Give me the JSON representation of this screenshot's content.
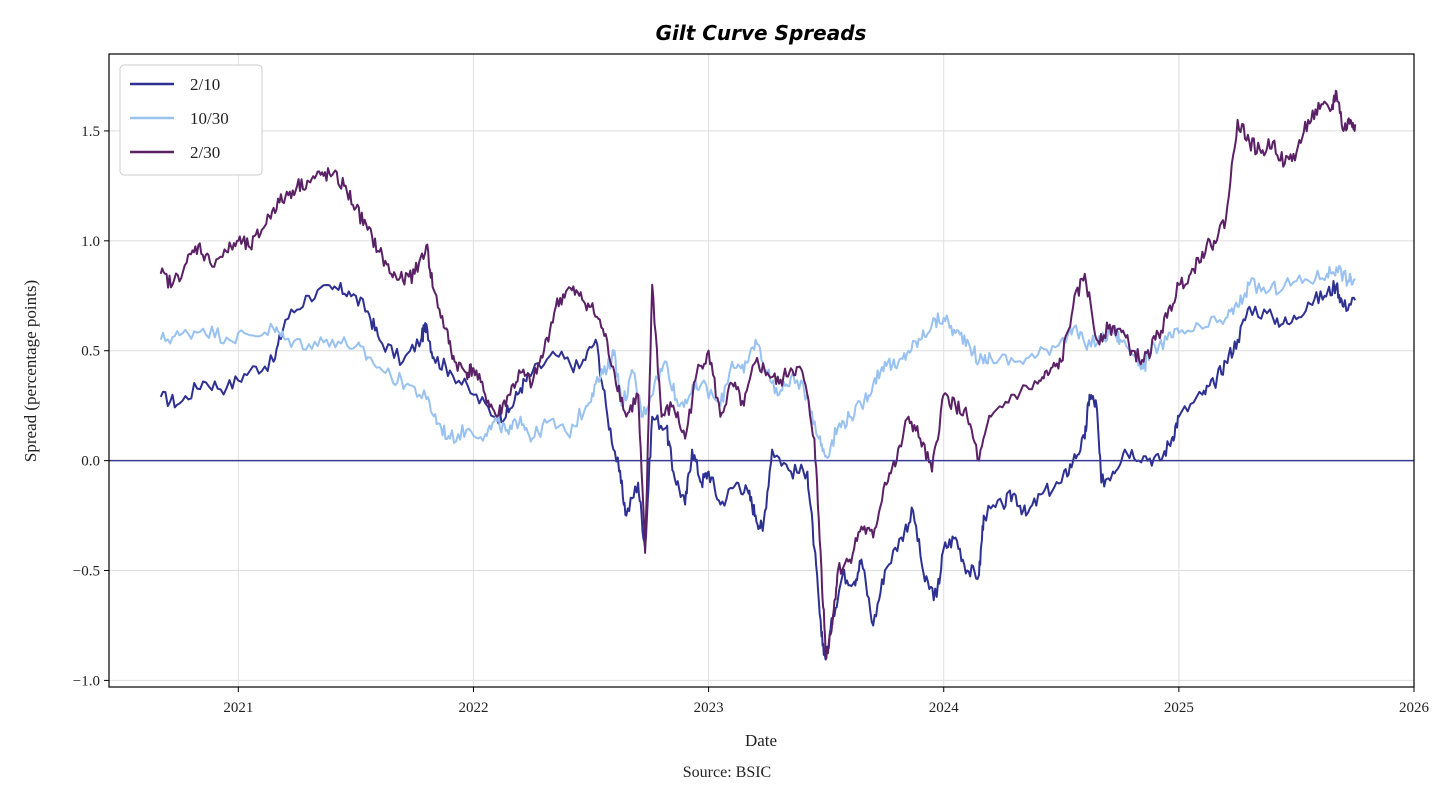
{
  "chart_data": {
    "type": "line",
    "title": "Gilt Curve Spreads",
    "xlabel": "Date",
    "ylabel": "Spread (percentage points)",
    "source": "Source: BSIC",
    "xlim": [
      2020.45,
      2026.0
    ],
    "ylim": [
      -1.03,
      1.85
    ],
    "x_ticks": [
      2021,
      2022,
      2023,
      2024,
      2025,
      2026
    ],
    "x_tick_labels": [
      "2021",
      "2022",
      "2023",
      "2024",
      "2025",
      "2026"
    ],
    "y_ticks": [
      -1.0,
      -0.5,
      0.0,
      0.5,
      1.0,
      1.5
    ],
    "y_tick_labels": [
      "−1.0",
      "−0.5",
      "0.0",
      "0.5",
      "1.0",
      "1.5"
    ],
    "grid": true,
    "legend_position": "top-left",
    "zero_line": {
      "value": 0.0,
      "color": "#3b3b96"
    },
    "series": [
      {
        "name": "2/10",
        "color": "#2e3192",
        "points": [
          [
            2020.67,
            0.29
          ],
          [
            2020.75,
            0.26
          ],
          [
            2020.85,
            0.36
          ],
          [
            2020.95,
            0.33
          ],
          [
            2021.05,
            0.41
          ],
          [
            2021.15,
            0.45
          ],
          [
            2021.2,
            0.64
          ],
          [
            2021.3,
            0.75
          ],
          [
            2021.4,
            0.78
          ],
          [
            2021.47,
            0.77
          ],
          [
            2021.55,
            0.68
          ],
          [
            2021.6,
            0.55
          ],
          [
            2021.7,
            0.45
          ],
          [
            2021.78,
            0.56
          ],
          [
            2021.8,
            0.62
          ],
          [
            2021.83,
            0.47
          ],
          [
            2021.9,
            0.41
          ],
          [
            2022.0,
            0.3
          ],
          [
            2022.1,
            0.2
          ],
          [
            2022.15,
            0.22
          ],
          [
            2022.2,
            0.33
          ],
          [
            2022.25,
            0.4
          ],
          [
            2022.35,
            0.48
          ],
          [
            2022.45,
            0.42
          ],
          [
            2022.52,
            0.55
          ],
          [
            2022.57,
            0.2
          ],
          [
            2022.62,
            -0.05
          ],
          [
            2022.65,
            -0.25
          ],
          [
            2022.7,
            -0.1
          ],
          [
            2022.73,
            -0.4
          ],
          [
            2022.76,
            0.2
          ],
          [
            2022.82,
            0.15
          ],
          [
            2022.85,
            -0.05
          ],
          [
            2022.9,
            -0.2
          ],
          [
            2022.93,
            0.05
          ],
          [
            2022.97,
            -0.1
          ],
          [
            2023.0,
            -0.05
          ],
          [
            2023.05,
            -0.2
          ],
          [
            2023.12,
            -0.1
          ],
          [
            2023.17,
            -0.15
          ],
          [
            2023.2,
            -0.25
          ],
          [
            2023.23,
            -0.32
          ],
          [
            2023.27,
            0.05
          ],
          [
            2023.35,
            -0.05
          ],
          [
            2023.42,
            -0.05
          ],
          [
            2023.45,
            -0.4
          ],
          [
            2023.48,
            -0.8
          ],
          [
            2023.5,
            -0.9
          ],
          [
            2023.53,
            -0.7
          ],
          [
            2023.57,
            -0.52
          ],
          [
            2023.62,
            -0.55
          ],
          [
            2023.65,
            -0.45
          ],
          [
            2023.7,
            -0.75
          ],
          [
            2023.75,
            -0.5
          ],
          [
            2023.82,
            -0.35
          ],
          [
            2023.87,
            -0.23
          ],
          [
            2023.92,
            -0.55
          ],
          [
            2023.97,
            -0.62
          ],
          [
            2024.0,
            -0.4
          ],
          [
            2024.05,
            -0.35
          ],
          [
            2024.1,
            -0.5
          ],
          [
            2024.15,
            -0.52
          ],
          [
            2024.17,
            -0.25
          ],
          [
            2024.25,
            -0.2
          ],
          [
            2024.3,
            -0.15
          ],
          [
            2024.35,
            -0.25
          ],
          [
            2024.42,
            -0.15
          ],
          [
            2024.5,
            -0.1
          ],
          [
            2024.55,
            0.0
          ],
          [
            2024.6,
            0.1
          ],
          [
            2024.62,
            0.3
          ],
          [
            2024.65,
            0.25
          ],
          [
            2024.67,
            -0.1
          ],
          [
            2024.72,
            -0.05
          ],
          [
            2024.77,
            0.05
          ],
          [
            2024.85,
            0.02
          ],
          [
            2024.92,
            0.0
          ],
          [
            2024.97,
            0.1
          ],
          [
            2025.0,
            0.2
          ],
          [
            2025.1,
            0.3
          ],
          [
            2025.15,
            0.35
          ],
          [
            2025.2,
            0.45
          ],
          [
            2025.25,
            0.55
          ],
          [
            2025.3,
            0.7
          ],
          [
            2025.4,
            0.65
          ],
          [
            2025.47,
            0.62
          ],
          [
            2025.55,
            0.72
          ],
          [
            2025.62,
            0.75
          ],
          [
            2025.67,
            0.8
          ],
          [
            2025.7,
            0.7
          ],
          [
            2025.75,
            0.73
          ]
        ]
      },
      {
        "name": "10/30",
        "color": "#99c2f0",
        "points": [
          [
            2020.67,
            0.55
          ],
          [
            2020.75,
            0.57
          ],
          [
            2020.85,
            0.6
          ],
          [
            2020.95,
            0.56
          ],
          [
            2021.05,
            0.57
          ],
          [
            2021.15,
            0.6
          ],
          [
            2021.2,
            0.55
          ],
          [
            2021.3,
            0.53
          ],
          [
            2021.4,
            0.55
          ],
          [
            2021.5,
            0.52
          ],
          [
            2021.55,
            0.47
          ],
          [
            2021.65,
            0.38
          ],
          [
            2021.72,
            0.35
          ],
          [
            2021.8,
            0.28
          ],
          [
            2021.85,
            0.17
          ],
          [
            2021.9,
            0.1
          ],
          [
            2021.97,
            0.14
          ],
          [
            2022.05,
            0.12
          ],
          [
            2022.1,
            0.18
          ],
          [
            2022.15,
            0.12
          ],
          [
            2022.2,
            0.2
          ],
          [
            2022.25,
            0.1
          ],
          [
            2022.32,
            0.18
          ],
          [
            2022.4,
            0.12
          ],
          [
            2022.48,
            0.25
          ],
          [
            2022.52,
            0.35
          ],
          [
            2022.57,
            0.42
          ],
          [
            2022.6,
            0.5
          ],
          [
            2022.63,
            0.25
          ],
          [
            2022.68,
            0.4
          ],
          [
            2022.72,
            0.2
          ],
          [
            2022.77,
            0.35
          ],
          [
            2022.82,
            0.45
          ],
          [
            2022.87,
            0.25
          ],
          [
            2022.92,
            0.3
          ],
          [
            2022.97,
            0.35
          ],
          [
            2023.05,
            0.25
          ],
          [
            2023.1,
            0.45
          ],
          [
            2023.15,
            0.4
          ],
          [
            2023.2,
            0.55
          ],
          [
            2023.25,
            0.4
          ],
          [
            2023.3,
            0.3
          ],
          [
            2023.35,
            0.38
          ],
          [
            2023.42,
            0.3
          ],
          [
            2023.47,
            0.1
          ],
          [
            2023.5,
            0.02
          ],
          [
            2023.55,
            0.15
          ],
          [
            2023.6,
            0.2
          ],
          [
            2023.65,
            0.25
          ],
          [
            2023.7,
            0.35
          ],
          [
            2023.75,
            0.45
          ],
          [
            2023.8,
            0.42
          ],
          [
            2023.85,
            0.5
          ],
          [
            2023.9,
            0.55
          ],
          [
            2023.95,
            0.62
          ],
          [
            2024.0,
            0.65
          ],
          [
            2024.05,
            0.58
          ],
          [
            2024.1,
            0.55
          ],
          [
            2024.15,
            0.45
          ],
          [
            2024.2,
            0.47
          ],
          [
            2024.3,
            0.45
          ],
          [
            2024.4,
            0.48
          ],
          [
            2024.5,
            0.55
          ],
          [
            2024.55,
            0.6
          ],
          [
            2024.6,
            0.53
          ],
          [
            2024.67,
            0.55
          ],
          [
            2024.72,
            0.6
          ],
          [
            2024.75,
            0.55
          ],
          [
            2024.82,
            0.48
          ],
          [
            2024.85,
            0.42
          ],
          [
            2024.88,
            0.5
          ],
          [
            2024.95,
            0.55
          ],
          [
            2025.0,
            0.58
          ],
          [
            2025.1,
            0.6
          ],
          [
            2025.2,
            0.65
          ],
          [
            2025.25,
            0.7
          ],
          [
            2025.3,
            0.8
          ],
          [
            2025.38,
            0.77
          ],
          [
            2025.45,
            0.8
          ],
          [
            2025.55,
            0.82
          ],
          [
            2025.63,
            0.85
          ],
          [
            2025.67,
            0.88
          ],
          [
            2025.72,
            0.82
          ],
          [
            2025.75,
            0.82
          ]
        ]
      },
      {
        "name": "2/30",
        "color": "#5b2166",
        "points": [
          [
            2020.67,
            0.85
          ],
          [
            2020.72,
            0.8
          ],
          [
            2020.78,
            0.9
          ],
          [
            2020.83,
            0.98
          ],
          [
            2020.88,
            0.9
          ],
          [
            2020.95,
            0.95
          ],
          [
            2021.0,
            1.0
          ],
          [
            2021.05,
            0.97
          ],
          [
            2021.1,
            1.05
          ],
          [
            2021.15,
            1.15
          ],
          [
            2021.2,
            1.2
          ],
          [
            2021.25,
            1.25
          ],
          [
            2021.3,
            1.27
          ],
          [
            2021.35,
            1.3
          ],
          [
            2021.4,
            1.3
          ],
          [
            2021.45,
            1.25
          ],
          [
            2021.5,
            1.15
          ],
          [
            2021.55,
            1.05
          ],
          [
            2021.6,
            0.95
          ],
          [
            2021.65,
            0.85
          ],
          [
            2021.7,
            0.82
          ],
          [
            2021.75,
            0.85
          ],
          [
            2021.8,
            0.98
          ],
          [
            2021.83,
            0.78
          ],
          [
            2021.88,
            0.6
          ],
          [
            2021.92,
            0.45
          ],
          [
            2021.97,
            0.4
          ],
          [
            2022.0,
            0.42
          ],
          [
            2022.05,
            0.3
          ],
          [
            2022.1,
            0.2
          ],
          [
            2022.15,
            0.3
          ],
          [
            2022.2,
            0.4
          ],
          [
            2022.25,
            0.35
          ],
          [
            2022.3,
            0.5
          ],
          [
            2022.35,
            0.7
          ],
          [
            2022.4,
            0.78
          ],
          [
            2022.45,
            0.75
          ],
          [
            2022.5,
            0.7
          ],
          [
            2022.55,
            0.6
          ],
          [
            2022.6,
            0.4
          ],
          [
            2022.65,
            0.2
          ],
          [
            2022.7,
            0.3
          ],
          [
            2022.73,
            -0.42
          ],
          [
            2022.76,
            0.8
          ],
          [
            2022.8,
            0.2
          ],
          [
            2022.85,
            0.25
          ],
          [
            2022.9,
            0.1
          ],
          [
            2022.95,
            0.4
          ],
          [
            2023.0,
            0.5
          ],
          [
            2023.05,
            0.2
          ],
          [
            2023.1,
            0.35
          ],
          [
            2023.15,
            0.25
          ],
          [
            2023.2,
            0.45
          ],
          [
            2023.25,
            0.4
          ],
          [
            2023.3,
            0.35
          ],
          [
            2023.35,
            0.42
          ],
          [
            2023.4,
            0.4
          ],
          [
            2023.45,
            0.1
          ],
          [
            2023.48,
            -0.5
          ],
          [
            2023.5,
            -0.9
          ],
          [
            2023.53,
            -0.7
          ],
          [
            2023.55,
            -0.5
          ],
          [
            2023.6,
            -0.45
          ],
          [
            2023.65,
            -0.3
          ],
          [
            2023.7,
            -0.35
          ],
          [
            2023.75,
            -0.1
          ],
          [
            2023.8,
            0.0
          ],
          [
            2023.85,
            0.2
          ],
          [
            2023.9,
            0.1
          ],
          [
            2023.95,
            -0.05
          ],
          [
            2024.0,
            0.3
          ],
          [
            2024.05,
            0.25
          ],
          [
            2024.1,
            0.2
          ],
          [
            2024.15,
            0.0
          ],
          [
            2024.2,
            0.2
          ],
          [
            2024.3,
            0.3
          ],
          [
            2024.4,
            0.35
          ],
          [
            2024.45,
            0.4
          ],
          [
            2024.5,
            0.45
          ],
          [
            2024.55,
            0.7
          ],
          [
            2024.6,
            0.85
          ],
          [
            2024.65,
            0.55
          ],
          [
            2024.7,
            0.6
          ],
          [
            2024.75,
            0.6
          ],
          [
            2024.8,
            0.5
          ],
          [
            2024.85,
            0.45
          ],
          [
            2024.9,
            0.55
          ],
          [
            2024.95,
            0.65
          ],
          [
            2025.0,
            0.8
          ],
          [
            2025.05,
            0.85
          ],
          [
            2025.1,
            0.95
          ],
          [
            2025.15,
            1.0
          ],
          [
            2025.2,
            1.1
          ],
          [
            2025.25,
            1.55
          ],
          [
            2025.3,
            1.45
          ],
          [
            2025.35,
            1.4
          ],
          [
            2025.4,
            1.45
          ],
          [
            2025.45,
            1.35
          ],
          [
            2025.5,
            1.4
          ],
          [
            2025.55,
            1.55
          ],
          [
            2025.6,
            1.6
          ],
          [
            2025.65,
            1.6
          ],
          [
            2025.67,
            1.68
          ],
          [
            2025.7,
            1.5
          ],
          [
            2025.73,
            1.55
          ],
          [
            2025.75,
            1.53
          ]
        ]
      }
    ]
  }
}
